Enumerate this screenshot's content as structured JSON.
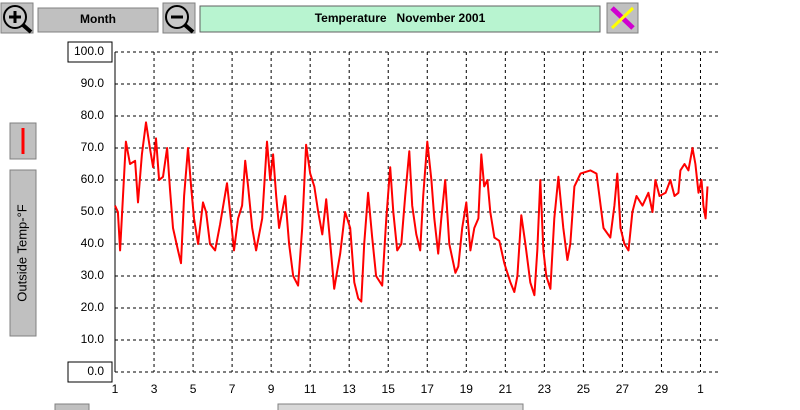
{
  "toolbar": {
    "period": "Month"
  },
  "chart_data": {
    "type": "line",
    "title": "Temperature   November 2001",
    "y_label": "Outside Temp-°F",
    "color": "#ff0000",
    "grid": true,
    "xlim": [
      1,
      32
    ],
    "ylim": [
      0,
      100
    ],
    "xticks": [
      1,
      3,
      5,
      7,
      9,
      11,
      13,
      15,
      17,
      19,
      21,
      23,
      25,
      27,
      29,
      {
        "value": 31,
        "label": "1"
      }
    ],
    "yticks": [
      {
        "value": 0,
        "label": "0.0"
      },
      {
        "value": 10,
        "label": "10.0"
      },
      {
        "value": 20,
        "label": "20.0"
      },
      {
        "value": 30,
        "label": "30.0"
      },
      {
        "value": 40,
        "label": "40.0"
      },
      {
        "value": 50,
        "label": "50.0"
      },
      {
        "value": 60,
        "label": "60.0"
      },
      {
        "value": 70,
        "label": "70.0"
      },
      {
        "value": 80,
        "label": "80.0"
      },
      {
        "value": 90,
        "label": "90.0"
      },
      {
        "value": 100,
        "label": "100.0"
      }
    ],
    "x": [
      1.0,
      1.15,
      1.26,
      1.41,
      1.56,
      1.77,
      2.03,
      2.18,
      2.38,
      2.59,
      2.79,
      2.95,
      3.1,
      3.26,
      3.46,
      3.67,
      3.82,
      3.97,
      4.23,
      4.38,
      4.54,
      4.74,
      4.9,
      5.05,
      5.26,
      5.51,
      5.67,
      5.87,
      6.13,
      6.38,
      6.74,
      6.95,
      7.1,
      7.31,
      7.51,
      7.67,
      7.82,
      8.03,
      8.23,
      8.54,
      8.79,
      8.95,
      9.1,
      9.26,
      9.41,
      9.72,
      9.92,
      10.13,
      10.38,
      10.59,
      10.79,
      11.0,
      11.21,
      11.41,
      11.62,
      11.82,
      12.03,
      12.23,
      12.54,
      12.79,
      13.05,
      13.26,
      13.46,
      13.62,
      13.77,
      13.97,
      14.18,
      14.38,
      14.69,
      14.9,
      15.1,
      15.26,
      15.46,
      15.67,
      15.87,
      16.08,
      16.23,
      16.44,
      16.64,
      16.79,
      17.0,
      17.21,
      17.36,
      17.56,
      17.72,
      17.92,
      18.13,
      18.44,
      18.59,
      18.79,
      19.0,
      19.21,
      19.41,
      19.62,
      19.77,
      19.92,
      20.08,
      20.23,
      20.44,
      20.69,
      20.95,
      21.26,
      21.46,
      21.62,
      21.82,
      22.03,
      22.28,
      22.49,
      22.64,
      22.79,
      22.95,
      23.1,
      23.31,
      23.51,
      23.72,
      23.97,
      24.18,
      24.33,
      24.54,
      24.85,
      25.36,
      25.67,
      25.82,
      26.03,
      26.38,
      26.59,
      26.74,
      26.9,
      27.1,
      27.31,
      27.51,
      27.72,
      28.03,
      28.33,
      28.54,
      28.69,
      28.9,
      29.21,
      29.46,
      29.67,
      29.87,
      29.97,
      30.18,
      30.38,
      30.59,
      30.74,
      30.9,
      31.05,
      31.15,
      31.26,
      31.36
    ],
    "values": [
      52,
      50,
      38,
      55,
      72,
      65,
      66,
      53,
      68,
      78,
      70,
      64,
      73,
      60,
      61,
      70,
      57,
      45,
      38,
      34,
      55,
      70,
      58,
      48,
      40,
      53,
      50,
      40,
      38,
      46,
      59,
      47,
      38,
      48,
      52,
      66,
      58,
      45,
      38,
      48,
      72,
      60,
      68,
      55,
      45,
      55,
      40,
      30,
      27,
      45,
      71,
      62,
      58,
      50,
      43,
      54,
      40,
      26,
      37,
      50,
      45,
      28,
      23,
      22,
      40,
      56,
      42,
      30,
      27,
      48,
      64,
      50,
      38,
      40,
      55,
      69,
      52,
      43,
      38,
      55,
      72,
      60,
      48,
      37,
      48,
      60,
      40,
      31,
      33,
      45,
      53,
      38,
      45,
      48,
      68,
      58,
      60,
      50,
      42,
      41,
      34,
      28,
      25,
      30,
      49,
      40,
      28,
      24,
      38,
      60,
      38,
      30,
      26,
      48,
      61,
      45,
      35,
      40,
      58,
      62,
      63,
      62,
      55,
      45,
      42,
      52,
      62,
      45,
      40,
      38,
      50,
      55,
      52,
      56,
      50,
      60,
      55,
      56,
      60,
      55,
      56,
      63,
      65,
      63,
      70,
      65,
      56,
      60,
      52,
      48,
      58
    ]
  }
}
